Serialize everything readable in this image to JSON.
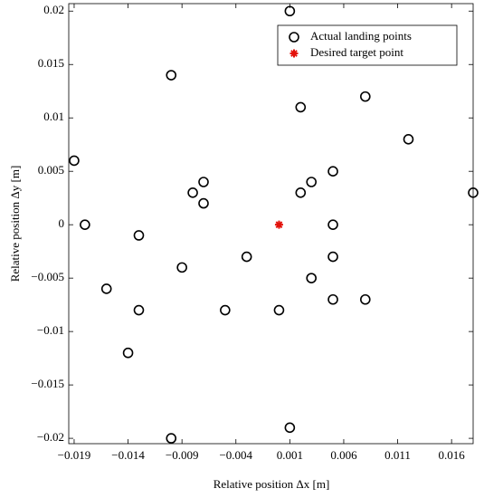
{
  "chart_data": {
    "type": "scatter",
    "xlabel": "Relative position Δx [m]",
    "ylabel": "Relative position Δy [m]",
    "xlim": [
      -0.0195,
      0.018
    ],
    "ylim": [
      -0.0205,
      0.0207
    ],
    "xticks": [
      {
        "value": -0.019,
        "label": "−0.019"
      },
      {
        "value": -0.014,
        "label": "−0.014"
      },
      {
        "value": -0.009,
        "label": "−0.009"
      },
      {
        "value": -0.004,
        "label": "−0.004"
      },
      0.001,
      0.006,
      0.011,
      0.016
    ],
    "yticks": [
      {
        "value": -0.02,
        "label": "−0.02"
      },
      {
        "value": -0.015,
        "label": "−0.015"
      },
      {
        "value": -0.01,
        "label": "−0.01"
      },
      {
        "value": -0.005,
        "label": "−0.005"
      },
      0,
      0.005,
      0.01,
      0.015,
      0.02
    ],
    "legend": "upper right",
    "series": [
      {
        "name": "Actual landing points",
        "color": "#000000",
        "marker": "circle",
        "x": [
          0.001,
          -0.01,
          0.008,
          0.002,
          0.012,
          -0.019,
          0.005,
          -0.007,
          0.003,
          -0.008,
          0.002,
          -0.007,
          0.018,
          -0.018,
          0.005,
          -0.013,
          -0.003,
          0.005,
          -0.009,
          0.003,
          -0.016,
          0.005,
          0.008,
          -0.013,
          -0.005,
          0,
          -0.014,
          0.001,
          -0.01
        ],
        "values": [
          0.02,
          0.014,
          0.012,
          0.011,
          0.008,
          0.006,
          0.005,
          0.004,
          0.004,
          0.003,
          0.003,
          0.002,
          0.003,
          0,
          0,
          -0.001,
          -0.003,
          -0.003,
          -0.004,
          -0.005,
          -0.006,
          -0.007,
          -0.007,
          -0.008,
          -0.008,
          -0.008,
          -0.012,
          -0.019,
          -0.02
        ]
      },
      {
        "name": "Desired target point",
        "color": "#e3120b",
        "marker": "asterisk",
        "x": [
          0
        ],
        "values": [
          0
        ]
      }
    ]
  }
}
